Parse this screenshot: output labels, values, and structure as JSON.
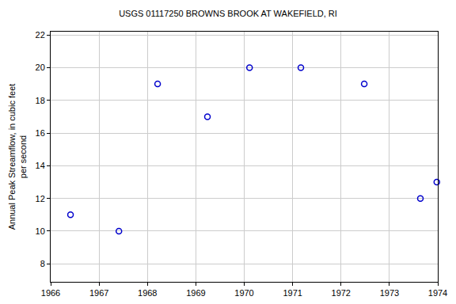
{
  "chart_data": {
    "type": "scatter",
    "title": "USGS 01117250 BROWNS BROOK AT WAKEFIELD, RI",
    "y_label": "Annual Peak Streamflow, in cubic feet\nper second",
    "x": [
      1966.41,
      1967.41,
      1968.21,
      1969.24,
      1970.11,
      1971.17,
      1972.48,
      1973.64,
      1973.98
    ],
    "values": [
      11,
      10,
      19,
      17,
      20,
      20,
      19,
      12,
      13
    ],
    "color": "#0000cc",
    "marker": "open_circle",
    "xlim": [
      1966,
      1974
    ],
    "xticks": [
      1966,
      1967,
      1968,
      1969,
      1970,
      1971,
      1972,
      1973,
      1974
    ],
    "ylim": [
      6.9,
      22.2
    ],
    "yticks": [
      8,
      10,
      12,
      14,
      16,
      18,
      20,
      22
    ],
    "grid": true
  }
}
